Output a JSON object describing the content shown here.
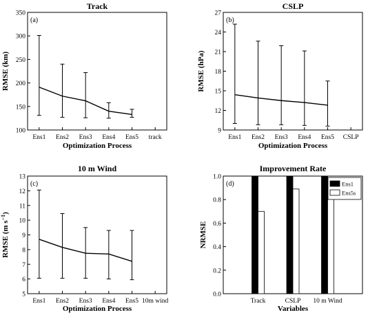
{
  "chart_data": [
    {
      "type": "line",
      "title": "Track",
      "panel_label": "(a)",
      "xlabel": "Optimization Process",
      "ylabel": "RMSE (km)",
      "categories": [
        "Ens1",
        "Ens2",
        "Ens3",
        "Ens4",
        "Ens5"
      ],
      "extra_tick": "track",
      "values": [
        191,
        172,
        162,
        140,
        133
      ],
      "error_low": [
        131,
        127,
        126,
        125,
        127
      ],
      "error_high": [
        301,
        240,
        222,
        158,
        144
      ],
      "ylim": [
        100,
        350
      ],
      "yticks": [
        "100",
        "150",
        "200",
        "250",
        "300",
        "350"
      ],
      "grid": false
    },
    {
      "type": "line",
      "title": "CSLP",
      "panel_label": "(b)",
      "xlabel": "Optimization Process",
      "ylabel": "RMSE (hPa)",
      "categories": [
        "Ens1",
        "Ens2",
        "Ens3",
        "Ens4",
        "Ens5"
      ],
      "extra_tick": "CSLP",
      "values": [
        14.4,
        13.9,
        13.5,
        13.2,
        12.8
      ],
      "error_low": [
        10.0,
        9.8,
        9.8,
        9.7,
        9.6
      ],
      "error_high": [
        25.2,
        22.6,
        21.9,
        21.1,
        16.5
      ],
      "ylim": [
        9,
        27
      ],
      "yticks": [
        "9",
        "12",
        "15",
        "18",
        "21",
        "24",
        "27"
      ],
      "grid": false
    },
    {
      "type": "line",
      "title": "10 m Wind",
      "panel_label": "(c)",
      "xlabel": "Optimization Process",
      "ylabel": "RMSE (m s",
      "ylabel_sup": "−1",
      "ylabel_end": ")",
      "categories": [
        "Ens1",
        "Ens2",
        "Ens3",
        "Ens4",
        "Ens5"
      ],
      "extra_tick": "10m wind",
      "values": [
        8.7,
        8.15,
        7.75,
        7.7,
        7.2
      ],
      "error_low": [
        6.05,
        6.05,
        6.05,
        6.0,
        5.95
      ],
      "error_high": [
        12.05,
        10.45,
        9.5,
        9.3,
        9.3
      ],
      "ylim": [
        5,
        13
      ],
      "yticks": [
        "5",
        "6",
        "7",
        "8",
        "9",
        "10",
        "11",
        "12",
        "13"
      ],
      "grid": false
    },
    {
      "type": "bar",
      "title": "Improvement Rate",
      "panel_label": "(d)",
      "xlabel": "Variables",
      "ylabel": "NRMSE",
      "categories": [
        "Track",
        "CSLP",
        "10 m Wind"
      ],
      "series": [
        {
          "name": "Ens1",
          "values": [
            1.0,
            1.0,
            1.0
          ],
          "color": "#000000"
        },
        {
          "name": "Ens5s",
          "values": [
            0.7,
            0.89,
            0.83
          ],
          "color": "#ffffff"
        }
      ],
      "ylim": [
        0,
        1.0
      ],
      "yticks": [
        "0.0",
        "0.2",
        "0.4",
        "0.6",
        "0.8",
        "1.0"
      ],
      "legend": "top-right",
      "grid": false
    }
  ]
}
